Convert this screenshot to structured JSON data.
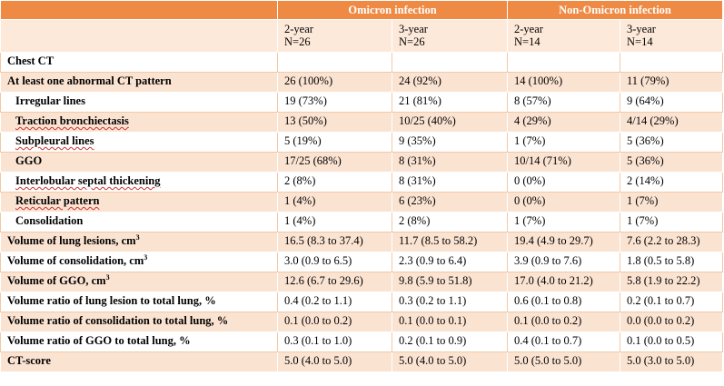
{
  "header": {
    "group1": "Omicron infection",
    "group2": "Non-Omicron infection"
  },
  "columns": [
    {
      "period": "2-year",
      "n": "N=26"
    },
    {
      "period": "3-year",
      "n": "N=26"
    },
    {
      "period": "2-year",
      "n": "N=14"
    },
    {
      "period": "3-year",
      "n": "N=14"
    }
  ],
  "section": "Chest CT",
  "rows": [
    {
      "label": "At least one abnormal CT pattern",
      "values": [
        "26 (100%)",
        "24 (92%)",
        "14 (100%)",
        "11 (79%)"
      ]
    },
    {
      "label": "Irregular lines",
      "values": [
        "19 (73%)",
        "21 (81%)",
        "8 (57%)",
        "9 (64%)"
      ]
    },
    {
      "label": "Traction bronchiectasis",
      "values": [
        "13 (50%)",
        "10/25 (40%)",
        "4 (29%)",
        "4/14 (29%)"
      ]
    },
    {
      "label": "Subpleural lines",
      "values": [
        "5 (19%)",
        "9 (35%)",
        "1 (7%)",
        "5 (36%)"
      ]
    },
    {
      "label": "GGO",
      "values": [
        "17/25 (68%)",
        "8 (31%)",
        "10/14 (71%)",
        "5 (36%)"
      ]
    },
    {
      "label": "Interlobular septal thickening",
      "values": [
        "2 (8%)",
        "8 (31%)",
        "0 (0%)",
        "2 (14%)"
      ]
    },
    {
      "label": "Reticular pattern",
      "values": [
        "1 (4%)",
        "6 (23%)",
        "0 (0%)",
        "1 (7%)"
      ]
    },
    {
      "label": "Consolidation",
      "values": [
        "1 (4%)",
        "2 (8%)",
        "1 (7%)",
        "1 (7%)"
      ]
    },
    {
      "label": "Volume of lung lesions, cm",
      "sup": "3",
      "values": [
        "16.5 (8.3 to 37.4)",
        "11.7 (8.5 to 58.2)",
        "19.4 (4.9 to 29.7)",
        "7.6 (2.2 to 28.3)"
      ]
    },
    {
      "label": "Volume of consolidation, cm",
      "sup": "3",
      "values": [
        "3.0 (0.9 to 6.5)",
        "2.3 (0.9 to 6.4)",
        "3.9 (0.9 to 7.6)",
        "1.8 (0.5 to 5.8)"
      ]
    },
    {
      "label": "Volume of GGO, cm",
      "sup": "3",
      "values": [
        "12.6 (6.7 to 29.6)",
        "9.8 (5.9 to 51.8)",
        "17.0 (4.0 to 21.2)",
        "5.8 (1.9 to 22.2)"
      ]
    },
    {
      "label": "Volume ratio of lung lesion to total lung, %",
      "values": [
        "0.4 (0.2 to 1.1)",
        "0.3 (0.2 to 1.1)",
        "0.6 (0.1 to 0.8)",
        "0.2 (0.1 to 0.7)"
      ]
    },
    {
      "label": "Volume ratio of consolidation to total lung, %",
      "values": [
        "0.1 (0.0 to 0.2)",
        "0.1 (0.0 to 0.1)",
        "0.1 (0.0 to 0.2)",
        "0.0 (0.0 to 0.2)"
      ]
    },
    {
      "label": "Volume ratio of GGO to total lung, %",
      "values": [
        "0.3 (0.1 to 1.0)",
        "0.2 (0.1 to 0.9)",
        "0.4 (0.1 to 0.7)",
        "0.1 (0.0 to 0.5)"
      ]
    },
    {
      "label": "CT-score",
      "values": [
        "5.0 (4.0 to 5.0)",
        "5.0 (4.0 to 5.0)",
        "5.0 (5.0 to 5.0)",
        "5.0 (3.0 to 5.0)"
      ]
    }
  ]
}
